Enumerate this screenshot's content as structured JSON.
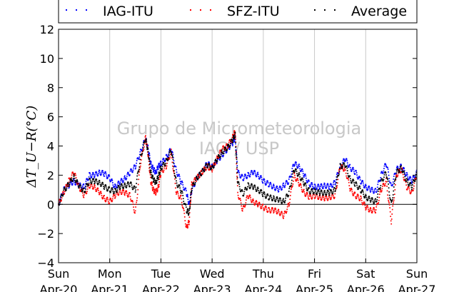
{
  "chart_data": {
    "type": "scatter",
    "title": "",
    "ylabel": "ΔT_U−R(°C)",
    "ylim": [
      -4,
      12
    ],
    "yticks": [
      -4,
      -2,
      0,
      2,
      4,
      6,
      8,
      10,
      12
    ],
    "xlim": [
      0,
      7
    ],
    "xticks": [
      {
        "day": "Sun",
        "date": "Apr-20"
      },
      {
        "day": "Mon",
        "date": "Apr-21"
      },
      {
        "day": "Tue",
        "date": "Apr-22"
      },
      {
        "day": "Wed",
        "date": "Apr-23"
      },
      {
        "day": "Thu",
        "date": "Apr-24"
      },
      {
        "day": "Fri",
        "date": "Apr-25"
      },
      {
        "day": "Sat",
        "date": "Apr-26"
      },
      {
        "day": "Sun",
        "date": "Apr-27"
      }
    ],
    "grid": "vertical",
    "zero_line": true,
    "legend_placement": "top",
    "watermark": [
      "Grupo de Micrometeorologia",
      "IAG / USP"
    ],
    "series": [
      {
        "name": "IAG-ITU",
        "color": "#0000ff",
        "x": [
          0,
          0.1,
          0.2,
          0.3,
          0.4,
          0.5,
          0.6,
          0.7,
          0.8,
          0.9,
          1,
          1.1,
          1.2,
          1.3,
          1.4,
          1.5,
          1.6,
          1.7,
          1.75,
          1.8,
          1.85,
          1.9,
          1.95,
          2,
          2.1,
          2.2,
          2.3,
          2.4,
          2.5,
          2.55,
          2.6,
          2.7,
          2.8,
          2.9,
          3,
          3.1,
          3.2,
          3.3,
          3.4,
          3.45,
          3.5,
          3.6,
          3.7,
          3.8,
          3.9,
          4,
          4.1,
          4.2,
          4.3,
          4.4,
          4.5,
          4.6,
          4.7,
          4.8,
          4.9,
          5,
          5.1,
          5.2,
          5.3,
          5.4,
          5.5,
          5.6,
          5.7,
          5.8,
          5.9,
          6,
          6.1,
          6.2,
          6.3,
          6.4,
          6.5,
          6.6,
          6.7,
          6.8,
          6.9,
          7
        ],
        "y": [
          0,
          1,
          1.3,
          1.6,
          1.3,
          1.2,
          2,
          2,
          2.2,
          2.1,
          1.8,
          1.2,
          1.5,
          1.8,
          2.2,
          2.6,
          3.6,
          4.5,
          3.8,
          2.8,
          2.4,
          2.2,
          2.6,
          2.8,
          3.2,
          3.8,
          2.3,
          1.5,
          0.8,
          0,
          0.9,
          1.8,
          2.2,
          2.8,
          2.6,
          3.0,
          3.4,
          3.8,
          4.2,
          4.6,
          2.2,
          1.8,
          2.0,
          2.2,
          2.0,
          1.6,
          1.4,
          1.2,
          1.0,
          1.3,
          1.6,
          2.8,
          2.6,
          2.0,
          1.4,
          1.2,
          1.2,
          1.3,
          1.2,
          1.5,
          2.6,
          3.1,
          2.5,
          2.2,
          1.6,
          1.2,
          1.0,
          0.9,
          2.0,
          2.8,
          1.2,
          2.4,
          2.6,
          2.0,
          1.6,
          2.2
        ]
      },
      {
        "name": "SFZ-ITU",
        "color": "#ff0000",
        "x": [
          0,
          0.1,
          0.2,
          0.3,
          0.4,
          0.5,
          0.6,
          0.7,
          0.8,
          0.9,
          1,
          1.1,
          1.2,
          1.3,
          1.4,
          1.5,
          1.6,
          1.7,
          1.75,
          1.8,
          1.85,
          1.9,
          1.95,
          2,
          2.1,
          2.2,
          2.3,
          2.4,
          2.5,
          2.55,
          2.6,
          2.7,
          2.8,
          2.9,
          3,
          3.1,
          3.2,
          3.3,
          3.4,
          3.45,
          3.5,
          3.6,
          3.7,
          3.8,
          3.9,
          4,
          4.1,
          4.2,
          4.3,
          4.4,
          4.5,
          4.6,
          4.7,
          4.8,
          4.9,
          5,
          5.1,
          5.2,
          5.3,
          5.4,
          5.5,
          5.6,
          5.7,
          5.8,
          5.9,
          6,
          6.1,
          6.2,
          6.3,
          6.4,
          6.5,
          6.6,
          6.7,
          6.8,
          6.9,
          7
        ],
        "y": [
          0,
          0.8,
          1.6,
          2.2,
          1.2,
          0.6,
          1.3,
          1.2,
          0.8,
          0.4,
          0.2,
          0.6,
          0.9,
          0.8,
          0.6,
          -0.6,
          2.8,
          4.6,
          3.4,
          1.6,
          1.0,
          0.8,
          1.2,
          2.2,
          2.6,
          3.6,
          0.8,
          0.4,
          -1.6,
          -1.2,
          1.4,
          1.8,
          2.2,
          2.6,
          2.4,
          3.2,
          3.8,
          4.0,
          4.6,
          5.0,
          0.8,
          -0.4,
          0.6,
          0.2,
          0.0,
          -0.2,
          -0.4,
          -0.4,
          -0.5,
          -0.8,
          0.0,
          2.0,
          1.4,
          0.8,
          0.5,
          0.6,
          0.5,
          0.4,
          0.5,
          0.6,
          2.6,
          2.4,
          1.0,
          0.6,
          0.4,
          -0.2,
          -0.4,
          -0.4,
          1.0,
          1.6,
          -1.2,
          2.0,
          2.4,
          1.2,
          0.8,
          2.0
        ]
      },
      {
        "name": "Average",
        "color": "#000000",
        "x": [
          0,
          0.1,
          0.2,
          0.3,
          0.4,
          0.5,
          0.6,
          0.7,
          0.8,
          0.9,
          1,
          1.1,
          1.2,
          1.3,
          1.4,
          1.5,
          1.6,
          1.7,
          1.75,
          1.8,
          1.85,
          1.9,
          1.95,
          2,
          2.1,
          2.2,
          2.3,
          2.4,
          2.5,
          2.55,
          2.6,
          2.7,
          2.8,
          2.9,
          3,
          3.1,
          3.2,
          3.3,
          3.4,
          3.45,
          3.5,
          3.6,
          3.7,
          3.8,
          3.9,
          4,
          4.1,
          4.2,
          4.3,
          4.4,
          4.5,
          4.6,
          4.7,
          4.8,
          4.9,
          5,
          5.1,
          5.2,
          5.3,
          5.4,
          5.5,
          5.6,
          5.7,
          5.8,
          5.9,
          6,
          6.1,
          6.2,
          6.3,
          6.4,
          6.5,
          6.6,
          6.7,
          6.8,
          6.9,
          7
        ],
        "y": [
          0,
          0.9,
          1.4,
          1.9,
          1.25,
          0.9,
          1.6,
          1.6,
          1.5,
          1.2,
          1.0,
          0.9,
          1.2,
          1.3,
          1.4,
          1.0,
          3.2,
          4.5,
          3.6,
          2.2,
          1.7,
          1.5,
          1.9,
          2.5,
          2.9,
          3.7,
          1.5,
          0.9,
          -0.4,
          -0.6,
          1.1,
          1.8,
          2.2,
          2.7,
          2.5,
          3.1,
          3.6,
          3.9,
          4.4,
          4.8,
          1.5,
          0.7,
          1.3,
          1.2,
          1.0,
          0.7,
          0.5,
          0.4,
          0.3,
          0.2,
          0.8,
          2.4,
          2.0,
          1.4,
          0.9,
          0.9,
          0.8,
          0.8,
          0.8,
          1.0,
          2.6,
          2.7,
          1.7,
          1.4,
          1.0,
          0.5,
          0.3,
          0.2,
          1.5,
          2.2,
          0.0,
          2.2,
          2.5,
          1.6,
          1.2,
          2.1
        ]
      }
    ]
  }
}
